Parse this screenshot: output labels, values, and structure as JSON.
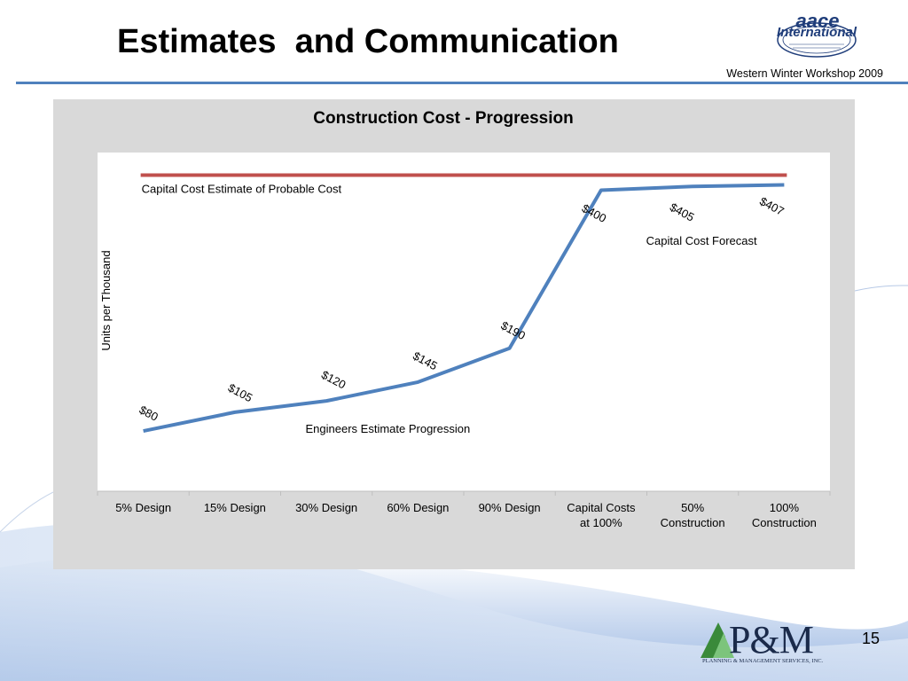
{
  "slide": {
    "title": "Estimates  and Communication",
    "subtitle": "Western Winter Workshop 2009",
    "page_number": "15",
    "logos": {
      "aace_text": "aace",
      "international_text": "International",
      "pm_text": "P&M",
      "pm_subtext": "PLANNING & MANAGEMENT SERVICES, INC."
    }
  },
  "colors": {
    "series_line": "#4f81bd",
    "reference_line": "#c0504d",
    "panel_background": "#d9d9d9",
    "plot_background": "#ffffff",
    "title_rule": "#4f81bd"
  },
  "chart_data": {
    "type": "line",
    "title": "Construction Cost - Progression",
    "ylabel": "Units per Thousand",
    "xlabel": "",
    "ylim": [
      0,
      450
    ],
    "grid": false,
    "categories": [
      [
        "5% Design"
      ],
      [
        "15% Design"
      ],
      [
        "30% Design"
      ],
      [
        "60% Design"
      ],
      [
        "90% Design"
      ],
      [
        "Capital Costs",
        "at 100%"
      ],
      [
        "50%",
        "Construction"
      ],
      [
        "100%",
        "Construction"
      ]
    ],
    "series": [
      {
        "values": [
          80,
          105,
          120,
          145,
          190,
          400,
          405,
          407
        ],
        "labels": [
          "$80",
          "$105",
          "$120",
          "$145",
          "$190",
          "$400",
          "$405",
          "$407"
        ]
      }
    ],
    "reference_line": {
      "value": 420
    },
    "annotations": [
      "Capital Cost Estimate of Probable Cost",
      "Capital Cost Forecast",
      "Engineers Estimate Progression"
    ]
  }
}
